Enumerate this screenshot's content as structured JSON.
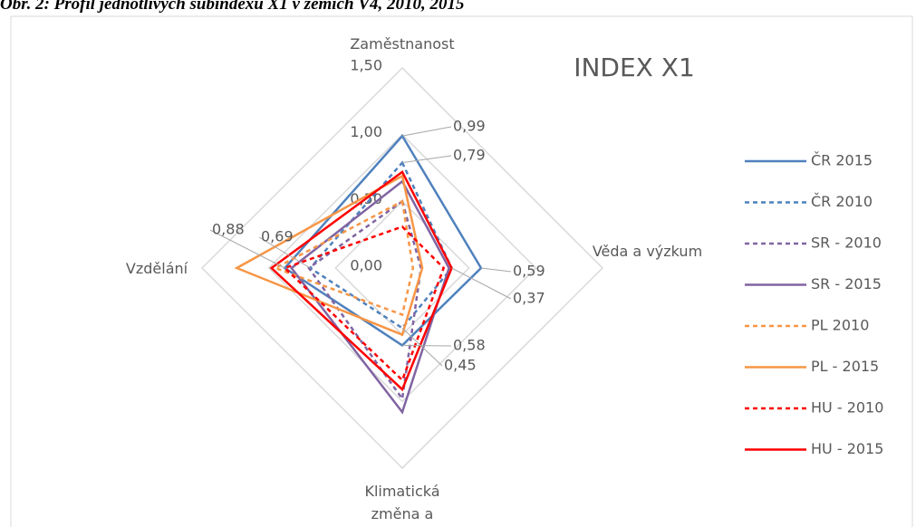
{
  "caption": "Obr. 2: Profil jednotlivých subindexů X1 v zemích V4, 2010, 2015",
  "chart_data": {
    "type": "radar",
    "title": "INDEX X1",
    "categories": [
      "Zaměstnanost",
      "Věda a výzkum",
      "Klimatická změna a",
      "Vzdělání"
    ],
    "ylim": [
      0,
      1.5
    ],
    "yticks": [
      {
        "value": 0,
        "label": "0,00"
      },
      {
        "value": 0.5,
        "label": "0,50"
      },
      {
        "value": 1,
        "label": "1,00"
      },
      {
        "value": 1.5,
        "label": "1,50"
      }
    ],
    "grid": true,
    "legend": "right",
    "series": [
      {
        "name": "ČR 2015",
        "color": "#4f81bd",
        "dash": false,
        "values": [
          0.99,
          0.59,
          0.58,
          0.88
        ],
        "value_labels": [
          "0,99",
          "0,59",
          "0,58",
          "0,88"
        ]
      },
      {
        "name": "ČR 2010",
        "color": "#4f81bd",
        "dash": true,
        "values": [
          0.79,
          0.37,
          0.45,
          0.69
        ],
        "value_labels": [
          "0,79",
          "0,37",
          "0,45",
          "0,69"
        ]
      },
      {
        "name": "SR - 2010",
        "color": "#8064a2",
        "dash": true,
        "values": [
          0.5,
          0.14,
          0.98,
          0.7
        ]
      },
      {
        "name": "SR - 2015",
        "color": "#8064a2",
        "dash": false,
        "values": [
          0.65,
          0.35,
          1.08,
          0.83
        ]
      },
      {
        "name": "PL 2010",
        "color": "#f79646",
        "dash": true,
        "values": [
          0.5,
          0.08,
          0.35,
          0.95
        ]
      },
      {
        "name": "PL - 2015",
        "color": "#f79646",
        "dash": false,
        "values": [
          0.69,
          0.15,
          0.5,
          1.24
        ]
      },
      {
        "name": "HU - 2010",
        "color": "#ff0000",
        "dash": true,
        "values": [
          0.31,
          0.31,
          0.84,
          0.88
        ]
      },
      {
        "name": "HU - 2015",
        "color": "#ff0000",
        "dash": false,
        "values": [
          0.72,
          0.37,
          0.91,
          0.98
        ]
      }
    ]
  }
}
